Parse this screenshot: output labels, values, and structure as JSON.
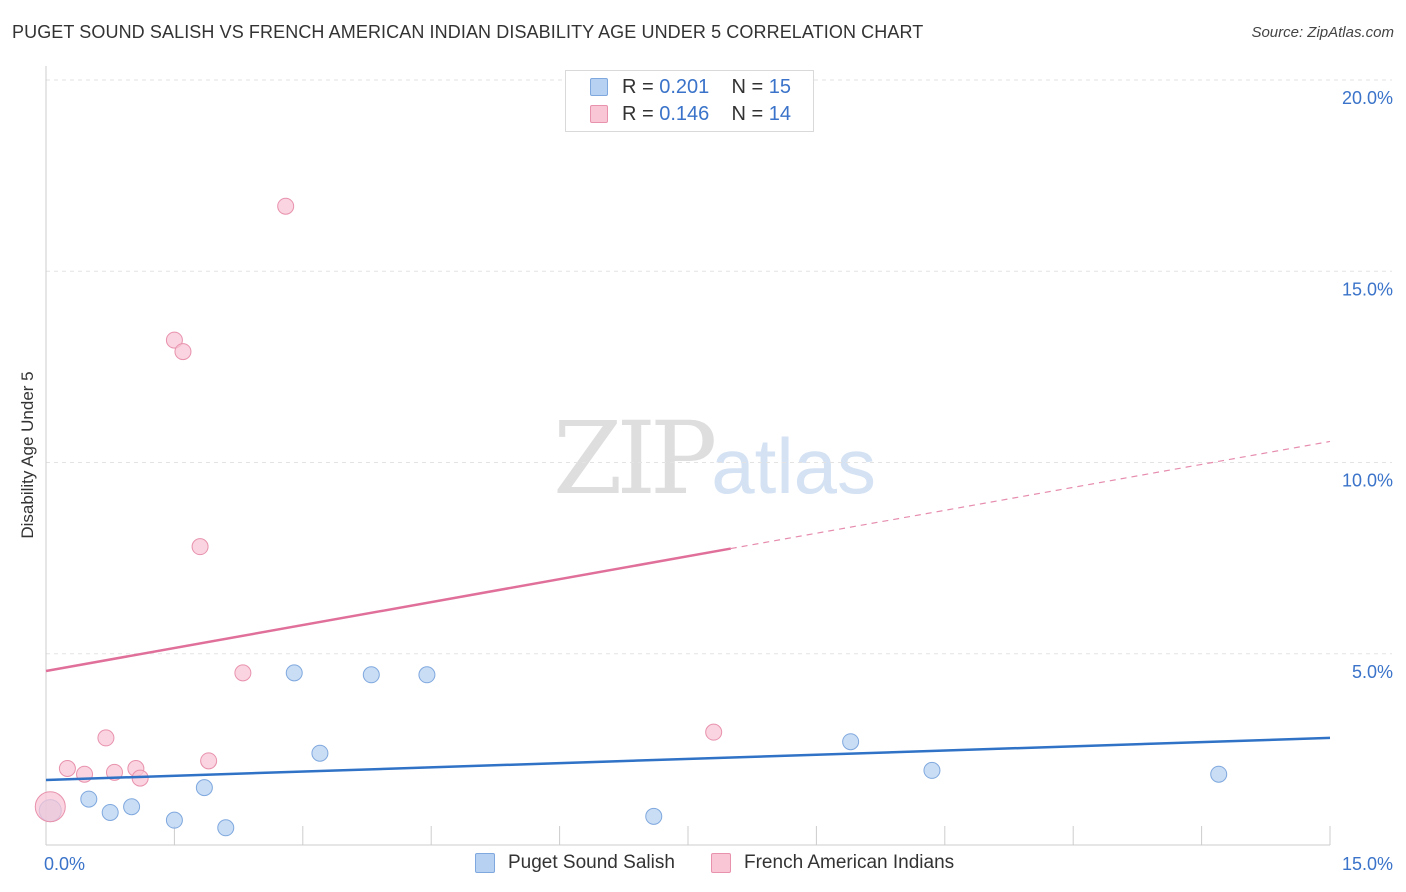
{
  "title": "PUGET SOUND SALISH VS FRENCH AMERICAN INDIAN DISABILITY AGE UNDER 5 CORRELATION CHART",
  "source": "Source: ZipAtlas.com",
  "watermark": {
    "part1": "ZIP",
    "part2": "atlas"
  },
  "colors": {
    "blue_fill": "#b7d1f2",
    "blue_stroke": "#7fa8de",
    "blue_line": "#2f72c6",
    "pink_fill": "#f8c6d5",
    "pink_stroke": "#e892ad",
    "pink_line": "#e0709a",
    "tick_label": "#3a73c9",
    "grid": "#e3e3e3"
  },
  "legend_top": [
    {
      "r_label": "R = ",
      "r_value": "0.201",
      "n_label": "N = ",
      "n_value": "15",
      "series": "blue"
    },
    {
      "r_label": "R = ",
      "r_value": "0.146",
      "n_label": "N = ",
      "n_value": "14",
      "series": "pink"
    }
  ],
  "legend_bottom": [
    {
      "label": "Puget Sound Salish",
      "series": "blue"
    },
    {
      "label": "French American Indians",
      "series": "pink"
    }
  ],
  "chart_data": {
    "type": "scatter",
    "title": "PUGET SOUND SALISH VS FRENCH AMERICAN INDIAN DISABILITY AGE UNDER 5 CORRELATION CHART",
    "xlabel": "",
    "ylabel": "Disability Age Under 5",
    "xlim": [
      0,
      15
    ],
    "ylim": [
      0,
      20
    ],
    "x_tick_labels": [
      "0.0%",
      "15.0%"
    ],
    "y_ticks": [
      5,
      10,
      15,
      20
    ],
    "y_tick_labels": [
      "5.0%",
      "10.0%",
      "15.0%",
      "20.0%"
    ],
    "grid": true,
    "series": [
      {
        "name": "Puget Sound Salish",
        "color": "blue",
        "points": [
          [
            0.05,
            0.9
          ],
          [
            0.5,
            1.2
          ],
          [
            0.75,
            0.85
          ],
          [
            1.0,
            1.0
          ],
          [
            1.5,
            0.65
          ],
          [
            1.85,
            1.5
          ],
          [
            2.1,
            0.45
          ],
          [
            2.9,
            4.5
          ],
          [
            3.2,
            2.4
          ],
          [
            3.8,
            4.45
          ],
          [
            4.45,
            4.45
          ],
          [
            7.1,
            0.75
          ],
          [
            9.4,
            2.7
          ],
          [
            10.35,
            1.95
          ],
          [
            13.7,
            1.85
          ]
        ],
        "trend": {
          "x": [
            0,
            15
          ],
          "y": [
            1.7,
            2.8
          ],
          "solid_to": 15
        }
      },
      {
        "name": "French American Indians",
        "color": "pink",
        "points": [
          [
            0.05,
            1.0
          ],
          [
            0.25,
            2.0
          ],
          [
            0.45,
            1.85
          ],
          [
            0.7,
            2.8
          ],
          [
            0.8,
            1.9
          ],
          [
            1.05,
            2.0
          ],
          [
            1.1,
            1.75
          ],
          [
            1.5,
            13.2
          ],
          [
            1.6,
            12.9
          ],
          [
            1.8,
            7.8
          ],
          [
            1.9,
            2.2
          ],
          [
            2.3,
            4.5
          ],
          [
            2.8,
            16.7
          ],
          [
            7.8,
            2.95
          ]
        ],
        "trend": {
          "x": [
            0,
            15
          ],
          "y": [
            4.55,
            10.55
          ],
          "solid_to": 8.0
        }
      }
    ]
  }
}
